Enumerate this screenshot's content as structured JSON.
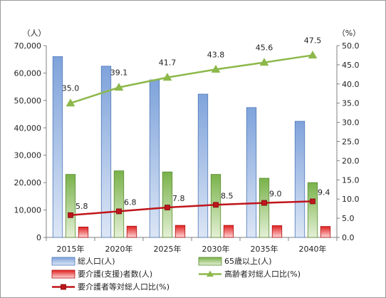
{
  "chart_data": {
    "type": "bar",
    "categories": [
      "2015年",
      "2020年",
      "2025年",
      "2030年",
      "2035年",
      "2040年"
    ],
    "left_axis": {
      "unit_label": "（人）",
      "ylim": [
        0,
        70000
      ],
      "ticks": [
        0,
        10000,
        20000,
        30000,
        40000,
        50000,
        60000,
        70000
      ],
      "tick_labels": [
        "0",
        "10,000",
        "20,000",
        "30,000",
        "40,000",
        "50,000",
        "60,000",
        "70,000"
      ]
    },
    "right_axis": {
      "unit_label": "（%）",
      "ylim": [
        0,
        50
      ],
      "ticks": [
        0,
        5,
        10,
        15,
        20,
        25,
        30,
        35,
        40,
        45,
        50
      ],
      "tick_labels": [
        "0.0",
        "5.0",
        "10.0",
        "15.0",
        "20.0",
        "25.0",
        "30.0",
        "35.0",
        "40.0",
        "45.0",
        "50.0"
      ]
    },
    "series": [
      {
        "name": "総人口(人)",
        "kind": "bar",
        "axis": "left",
        "colors": [
          "#dce6f5",
          "#7fa3db"
        ],
        "stroke": "#4f79b8",
        "values": [
          66000,
          62500,
          57500,
          52300,
          47400,
          42400
        ]
      },
      {
        "name": "65歳以上(人)",
        "kind": "bar",
        "axis": "left",
        "colors": [
          "#e4f0d6",
          "#79b24a"
        ],
        "stroke": "#5a8a32",
        "values": [
          23000,
          24300,
          23900,
          23000,
          21600,
          20000
        ]
      },
      {
        "name": "要介護(支援)者数(人)",
        "kind": "bar",
        "axis": "left",
        "colors": [
          "#ffd6d6",
          "#e02020"
        ],
        "stroke": "#b01010",
        "values": [
          3800,
          4100,
          4400,
          4400,
          4300,
          4000
        ]
      },
      {
        "name": "高齢者対総人口比(%)",
        "kind": "line",
        "axis": "right",
        "color": "#8db84a",
        "marker": "triangle",
        "values": [
          35.0,
          39.1,
          41.7,
          43.8,
          45.6,
          47.5
        ],
        "labels": [
          "35.0",
          "39.1",
          "41.7",
          "43.8",
          "45.6",
          "47.5"
        ]
      },
      {
        "name": "要介護者等対総人口比(%)",
        "kind": "line",
        "axis": "right",
        "color": "#c0151b",
        "marker": "square",
        "values": [
          5.8,
          6.8,
          7.8,
          8.5,
          9.0,
          9.4
        ],
        "labels": [
          "5.8",
          "6.8",
          "7.8",
          "8.5",
          "9.0",
          "9.4"
        ]
      }
    ],
    "grid": false,
    "legend_position": "bottom"
  }
}
